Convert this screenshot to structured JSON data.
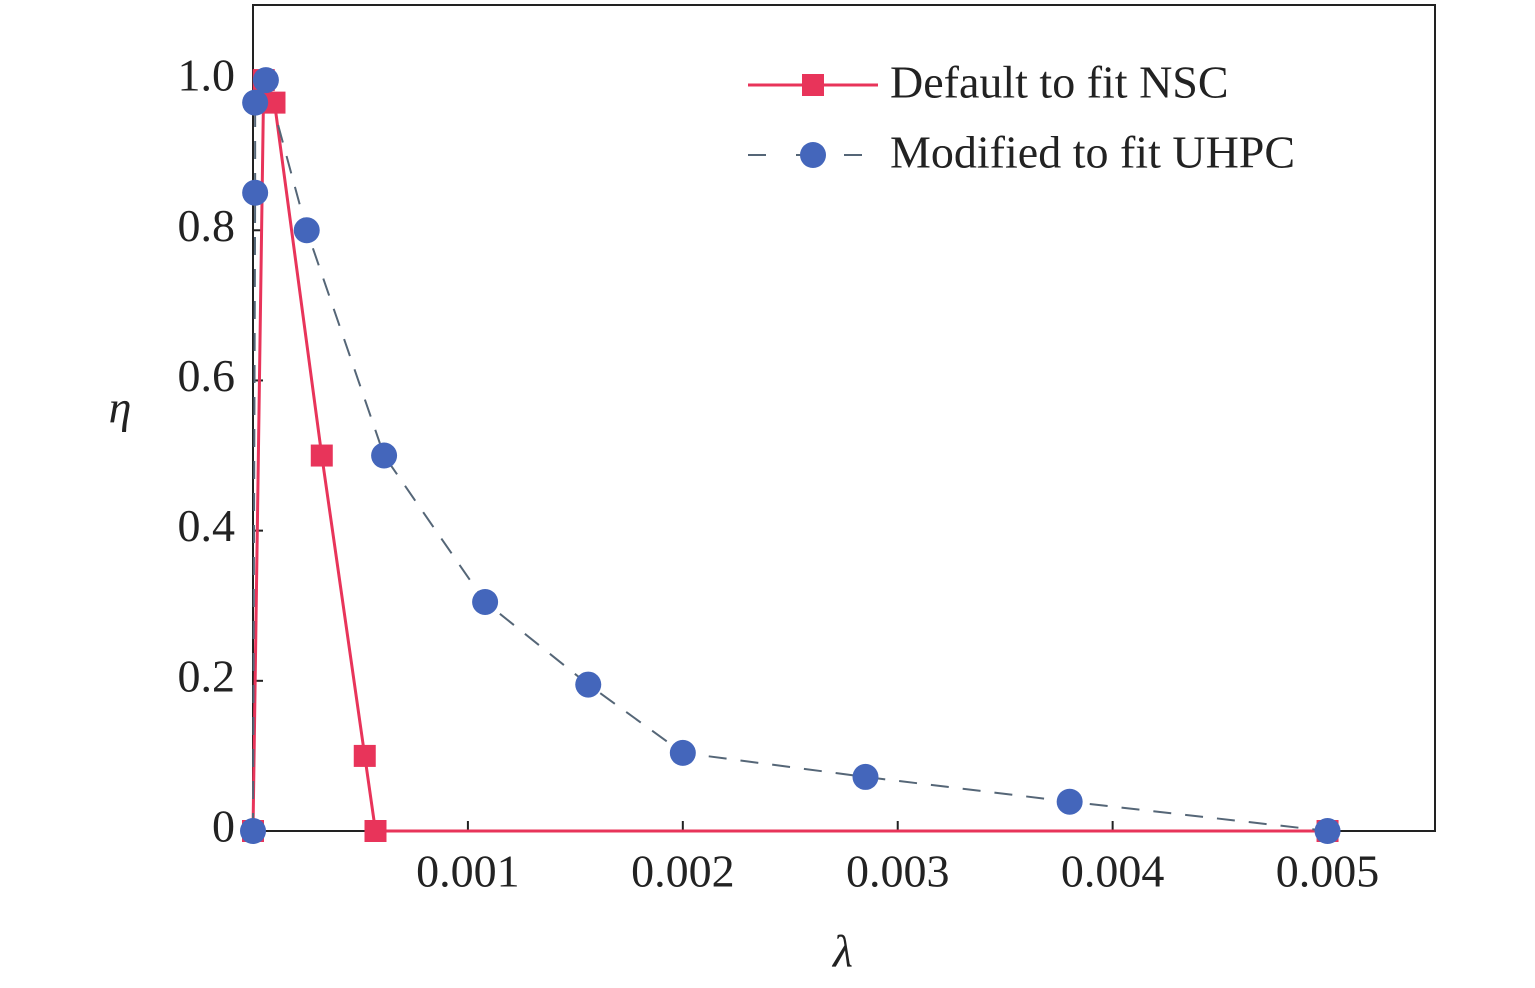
{
  "chart_data": {
    "type": "line",
    "x_label": "λ",
    "y_label": "η",
    "xlim": [
      0,
      0.0055
    ],
    "ylim": [
      0,
      1.1
    ],
    "xticks": [
      0.001,
      0.002,
      0.003,
      0.004,
      0.005
    ],
    "yticks": [
      0,
      0.2,
      0.4,
      0.6,
      0.8,
      {
        "value": 1,
        "label": "1.0"
      }
    ],
    "legend": "upper right",
    "series": [
      {
        "name": "Default to fit NSC",
        "color": "#e8345a",
        "line_color": "#e8345a",
        "dashed": false,
        "marker": "square",
        "x": [
          0,
          5e-05,
          0.0001,
          0.00032,
          0.00052,
          0.00057,
          0.005
        ],
        "values": [
          0,
          1.0,
          0.97,
          0.5,
          0.1,
          0,
          0
        ]
      },
      {
        "name": "Modified to fit UHPC",
        "color": "#4466bb",
        "line_color": "#556677",
        "dashed": true,
        "marker": "circle",
        "x": [
          0,
          1e-05,
          1e-05,
          6e-05,
          0.00025,
          0.00061,
          0.00108,
          0.00156,
          0.002,
          0.00285,
          0.0038,
          0.005
        ],
        "values": [
          0,
          0.85,
          0.97,
          1.0,
          0.8,
          0.5,
          0.305,
          0.195,
          0.104,
          0.072,
          0.039,
          0
        ]
      }
    ]
  }
}
